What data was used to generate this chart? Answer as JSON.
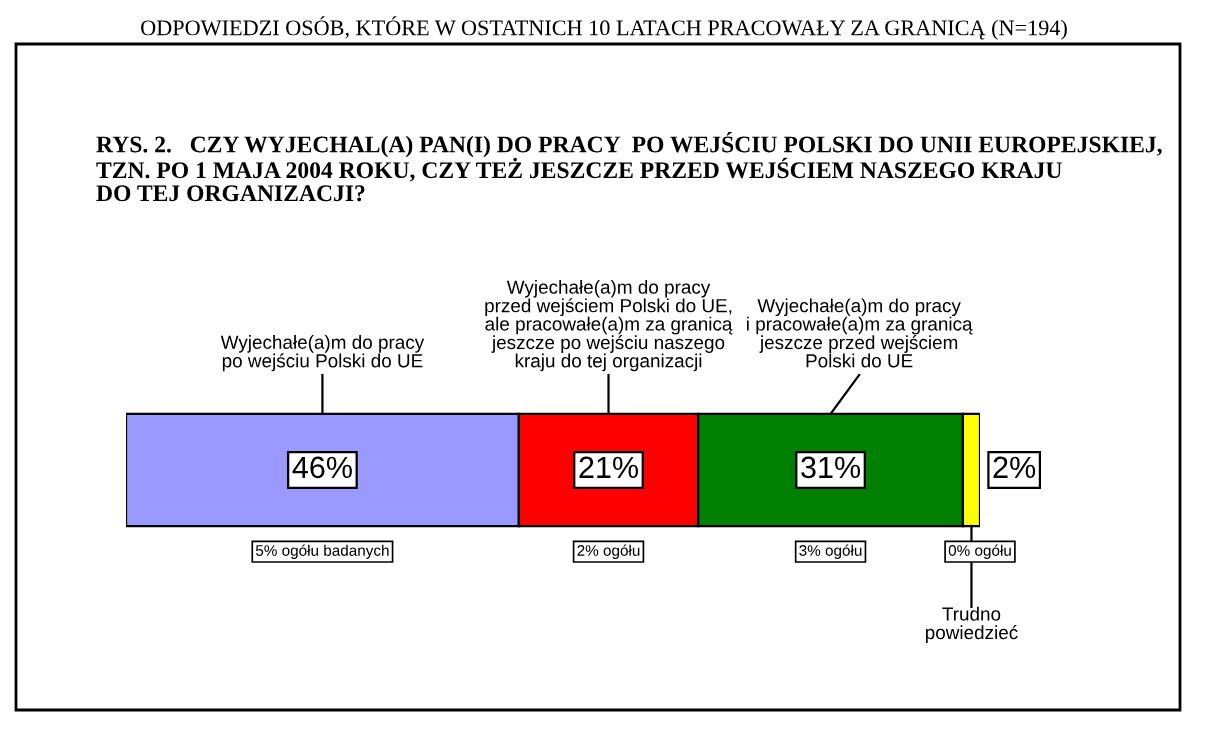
{
  "chart_data": {
    "type": "bar",
    "orientation": "horizontal",
    "stacked": true,
    "title": "ODPOWIEDZI OSÓB, KTÓRE W OSTATNICH 10 LATACH PRACOWAŁY ZA GRANICĄ (N=194)",
    "subtitle": "RYS. 2.   CZY WYJECHAL(A) PAN(I) DO PRACY  PO WEJŚCIU POLSKI DO UNII EUROPEJSKIEJ,\nTZN. PO 1 MAJA 2004 ROKU, CZY TEŻ JESZCZE PRZED WEJŚCIEM NASZEGO KRAJU\nDO TEJ ORGANIZACJI?",
    "categories": [
      null
    ],
    "series": [
      {
        "name": "Wyjechałe(a)m do pracy\npo wejściu Polski do UE",
        "color": "#9999ff",
        "values": [
          46
        ],
        "value_labels": [
          "46%"
        ]
      },
      {
        "name": "Wyjechałe(a)m do pracy\nprzed wejściem Polski do UE,\nale pracowałe(a)m za granicą\njeszcze po wejściu naszego\nkraju do tej organizacji",
        "color": "#ff0000",
        "values": [
          21
        ],
        "value_labels": [
          "21%"
        ]
      },
      {
        "name": "Wyjechałe(a)m do pracy\ni pracowałe(a)m za granicą\njeszcze przed wejściem\nPolski do UE",
        "color": "#008000",
        "values": [
          31
        ],
        "value_labels": [
          "31%"
        ]
      },
      {
        "name": "Trudno\npowiedzieć",
        "color": "#ffff00",
        "values": [
          2
        ],
        "value_labels": [
          "2%"
        ]
      }
    ],
    "annotations": [
      "5% ogółu badanych",
      "2% ogółu",
      "3% ogółu",
      "0% ogółu"
    ]
  }
}
